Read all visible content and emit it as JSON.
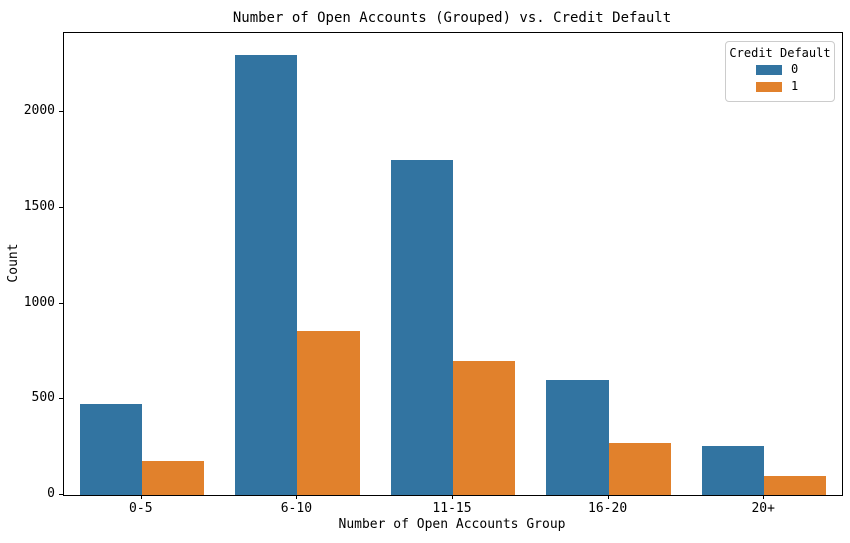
{
  "chart_data": {
    "type": "bar",
    "title": "Number of Open Accounts (Grouped) vs. Credit Default",
    "xlabel": "Number of Open Accounts Group",
    "ylabel": "Count",
    "categories": [
      "0-5",
      "6-10",
      "11-15",
      "16-20",
      "20+"
    ],
    "series": [
      {
        "name": "0",
        "color": "#3274a1",
        "values": [
          475,
          2300,
          1750,
          600,
          255
        ]
      },
      {
        "name": "1",
        "color": "#e1812c",
        "values": [
          180,
          855,
          700,
          270,
          100
        ]
      }
    ],
    "ylim": [
      0,
      2415
    ],
    "yticks": [
      0,
      500,
      1000,
      1500,
      2000
    ],
    "grid": false,
    "bar_group_fraction": 0.8,
    "legend": {
      "title": "Credit Default",
      "position": "upper right",
      "entries": [
        "0",
        "1"
      ]
    }
  },
  "colors": {
    "spine": "#000000",
    "text": "#000000",
    "legend_border": "#cccccc",
    "background": "#ffffff",
    "series_0": "#3274a1",
    "series_1": "#e1812c"
  }
}
